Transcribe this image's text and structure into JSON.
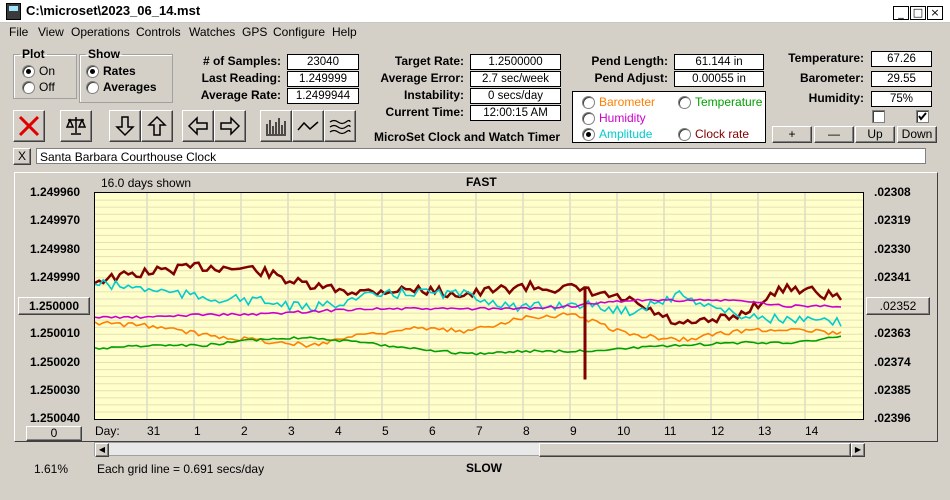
{
  "window": {
    "title": "C:\\microset\\2023_06_14.mst",
    "min_icon": "minimize-icon",
    "max_icon": "maximize-icon",
    "close_icon": "close-icon"
  },
  "menu": [
    "File",
    "View",
    "Operations",
    "Controls",
    "Watches",
    "GPS",
    "Configure",
    "Help"
  ],
  "plot_group": {
    "legend": "Plot",
    "on": "On",
    "off": "Off",
    "selected": "On"
  },
  "show_group": {
    "legend": "Show",
    "rates": "Rates",
    "averages": "Averages",
    "selected": "Rates"
  },
  "stats": {
    "samples_label": "# of Samples:",
    "samples": "23040",
    "last_reading_label": "Last Reading:",
    "last_reading": "1.249999",
    "average_rate_label": "Average Rate:",
    "average_rate": "1.2499944"
  },
  "targets": {
    "target_rate_label": "Target Rate:",
    "target_rate": "1.2500000",
    "average_error_label": "Average Error:",
    "average_error": "2.7 sec/week",
    "instability_label": "Instability:",
    "instability": "0 secs/day",
    "current_time_label": "Current Time:",
    "current_time": "12:00:15 AM",
    "app_caption": "MicroSet Clock and Watch Timer"
  },
  "pendulum": {
    "length_label": "Pend Length:",
    "length": "61.144 in",
    "adjust_label": "Pend Adjust:",
    "adjust": "0.00055 in"
  },
  "overlays": {
    "barometer": "Barometer",
    "temperature": "Temperature",
    "humidity": "Humidity",
    "amplitude": "Amplitude",
    "clock_rate": "Clock rate",
    "selected": "Amplitude",
    "colors": {
      "barometer": "#ff7f00",
      "temperature": "#00a000",
      "humidity": "#cc00cc",
      "amplitude": "#00cccc",
      "clock_rate": "#800000"
    }
  },
  "environment": {
    "temperature_label": "Temperature:",
    "temperature": "67.26",
    "barometer_label": "Barometer:",
    "barometer": "29.55",
    "humidity_label": "Humidity:",
    "humidity": "75%",
    "check1": false,
    "check2": true
  },
  "scale_buttons": {
    "plus": "+",
    "minus": "—",
    "up": "Up",
    "down": "Down"
  },
  "toolbar_icons": [
    "stop-icon",
    "balance-icon",
    "arrow-down-icon",
    "arrow-up-icon",
    "arrow-left-icon",
    "arrow-right-icon",
    "bar-graph-icon",
    "line-graph-icon",
    "wave-graph-icon"
  ],
  "clock_name": {
    "close": "X",
    "value": "Santa Barbara Courthouse Clock"
  },
  "chart": {
    "days_shown": "16.0 days shown",
    "top_label": "FAST",
    "bottom_label": "SLOW",
    "day_prefix": "Day:",
    "grid_note": "Each grid line = 0.691 secs/day",
    "percent": "1.61%",
    "left_button": "1.250000",
    "zero_button": "0",
    "right_button": ".02352"
  },
  "chart_data": {
    "type": "line",
    "x": [
      "31",
      "1",
      "2",
      "3",
      "4",
      "5",
      "6",
      "7",
      "8",
      "9",
      "10",
      "11",
      "12",
      "13",
      "14"
    ],
    "y_left_ticks": [
      "1.249960",
      "1.249970",
      "1.249980",
      "1.249990",
      "1.250000",
      "1.250010",
      "1.250020",
      "1.250030",
      "1.250040"
    ],
    "y_right_ticks": [
      ".02308",
      ".02319",
      ".02330",
      ".02341",
      ".02352",
      ".02363",
      ".02374",
      ".02385",
      ".02396"
    ],
    "ylim": [
      1.24996,
      1.25004
    ],
    "grid": true,
    "series": [
      {
        "name": "Clock rate",
        "color": "#800000",
        "values": [
          1.249991,
          1.249988,
          1.249986,
          1.249987,
          1.249993,
          1.249995,
          1.249994,
          1.249996,
          1.249993,
          1.249994,
          1.249998,
          1.250007,
          1.250004,
          1.249993,
          1.249997
        ]
      },
      {
        "name": "Amplitude",
        "color": "#00cccc",
        "values": [
          1.249992,
          1.249994,
          1.249997,
          1.249998,
          1.250001,
          1.249997,
          1.249995,
          1.249996,
          1.250001,
          1.249999,
          1.250002,
          1.249996,
          1.250003,
          1.250005,
          1.250006
        ]
      },
      {
        "name": "Humidity",
        "color": "#cc00cc",
        "values": [
          1.250004,
          1.250004,
          1.250003,
          1.250003,
          1.250002,
          1.250001,
          1.250001,
          1.250001,
          1.250001,
          1.25,
          1.249998,
          1.249998,
          1.249998,
          1.25,
          1.25
        ]
      },
      {
        "name": "Barometer",
        "color": "#ff7f00",
        "values": [
          1.250006,
          1.250007,
          1.25001,
          1.250012,
          1.250014,
          1.25001,
          1.250008,
          1.250009,
          1.250004,
          1.250003,
          1.25001,
          1.250012,
          1.250009,
          1.250008,
          1.25001
        ]
      },
      {
        "name": "Temperature",
        "color": "#00a000",
        "values": [
          1.250015,
          1.250014,
          1.250014,
          1.250012,
          1.250011,
          1.250013,
          1.250015,
          1.250017,
          1.250016,
          1.250016,
          1.250015,
          1.250014,
          1.250013,
          1.250013,
          1.250011
        ]
      }
    ]
  }
}
